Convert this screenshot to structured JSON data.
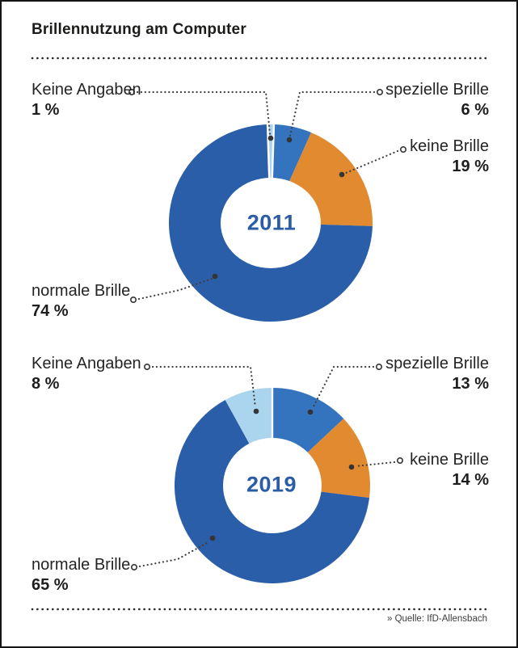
{
  "page": {
    "title": "Brillennutzung am Computer",
    "source": "» Quelle: IfD-Allensbach"
  },
  "chart_data": [
    {
      "type": "pie",
      "variant": "donut",
      "center_label": "2011",
      "center_label_color": "#2b5ca7",
      "start_angle_deg": -1.8,
      "clockwise": true,
      "labels_placement": "outside, dotted leader lines with end markers",
      "segments": [
        {
          "label": "Keine Angaben",
          "value_pct": 1,
          "value_display": "1 %",
          "color": "#abd4ee"
        },
        {
          "label": "spezielle Brille",
          "value_pct": 6,
          "value_display": "6 %",
          "color": "#3474be"
        },
        {
          "label": "keine Brille",
          "value_pct": 19,
          "value_display": "19 %",
          "color": "#e18a30"
        },
        {
          "label": "normale Brille",
          "value_pct": 74,
          "value_display": "74 %",
          "color": "#2a5ea9"
        }
      ]
    },
    {
      "type": "pie",
      "variant": "donut",
      "center_label": "2019",
      "center_label_color": "#2b5ca7",
      "start_angle_deg": 0,
      "clockwise": true,
      "labels_placement": "outside, dotted leader lines with end markers",
      "segments": [
        {
          "label": "spezielle Brille",
          "value_pct": 13,
          "value_display": "13 %",
          "color": "#3474be"
        },
        {
          "label": "keine Brille",
          "value_pct": 14,
          "value_display": "14 %",
          "color": "#e18a30"
        },
        {
          "label": "normale Brille",
          "value_pct": 65,
          "value_display": "65 %",
          "color": "#2a5ea9"
        },
        {
          "label": "Keine Angaben",
          "value_pct": 8,
          "value_display": "8 %",
          "color": "#abd4ee"
        }
      ]
    }
  ]
}
